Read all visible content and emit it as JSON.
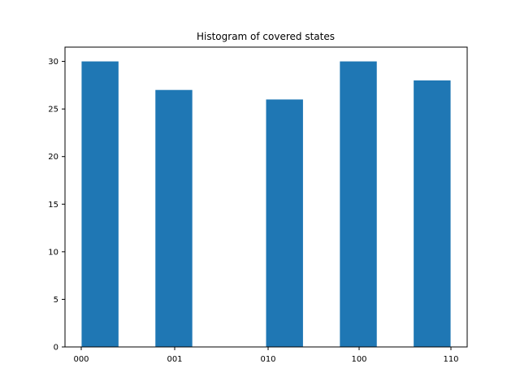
{
  "chart_data": {
    "type": "bar",
    "title": "Histogram of covered states",
    "categories": [
      "000",
      "001",
      "010",
      "100",
      "110"
    ],
    "values": [
      30,
      27,
      26,
      30,
      28
    ],
    "xlabel": "",
    "ylabel": "",
    "ylim": [
      0,
      31.5
    ],
    "yticks": [
      0,
      5,
      10,
      15,
      20,
      25,
      30
    ],
    "grid": false,
    "bar_color": "#1f77b4"
  }
}
